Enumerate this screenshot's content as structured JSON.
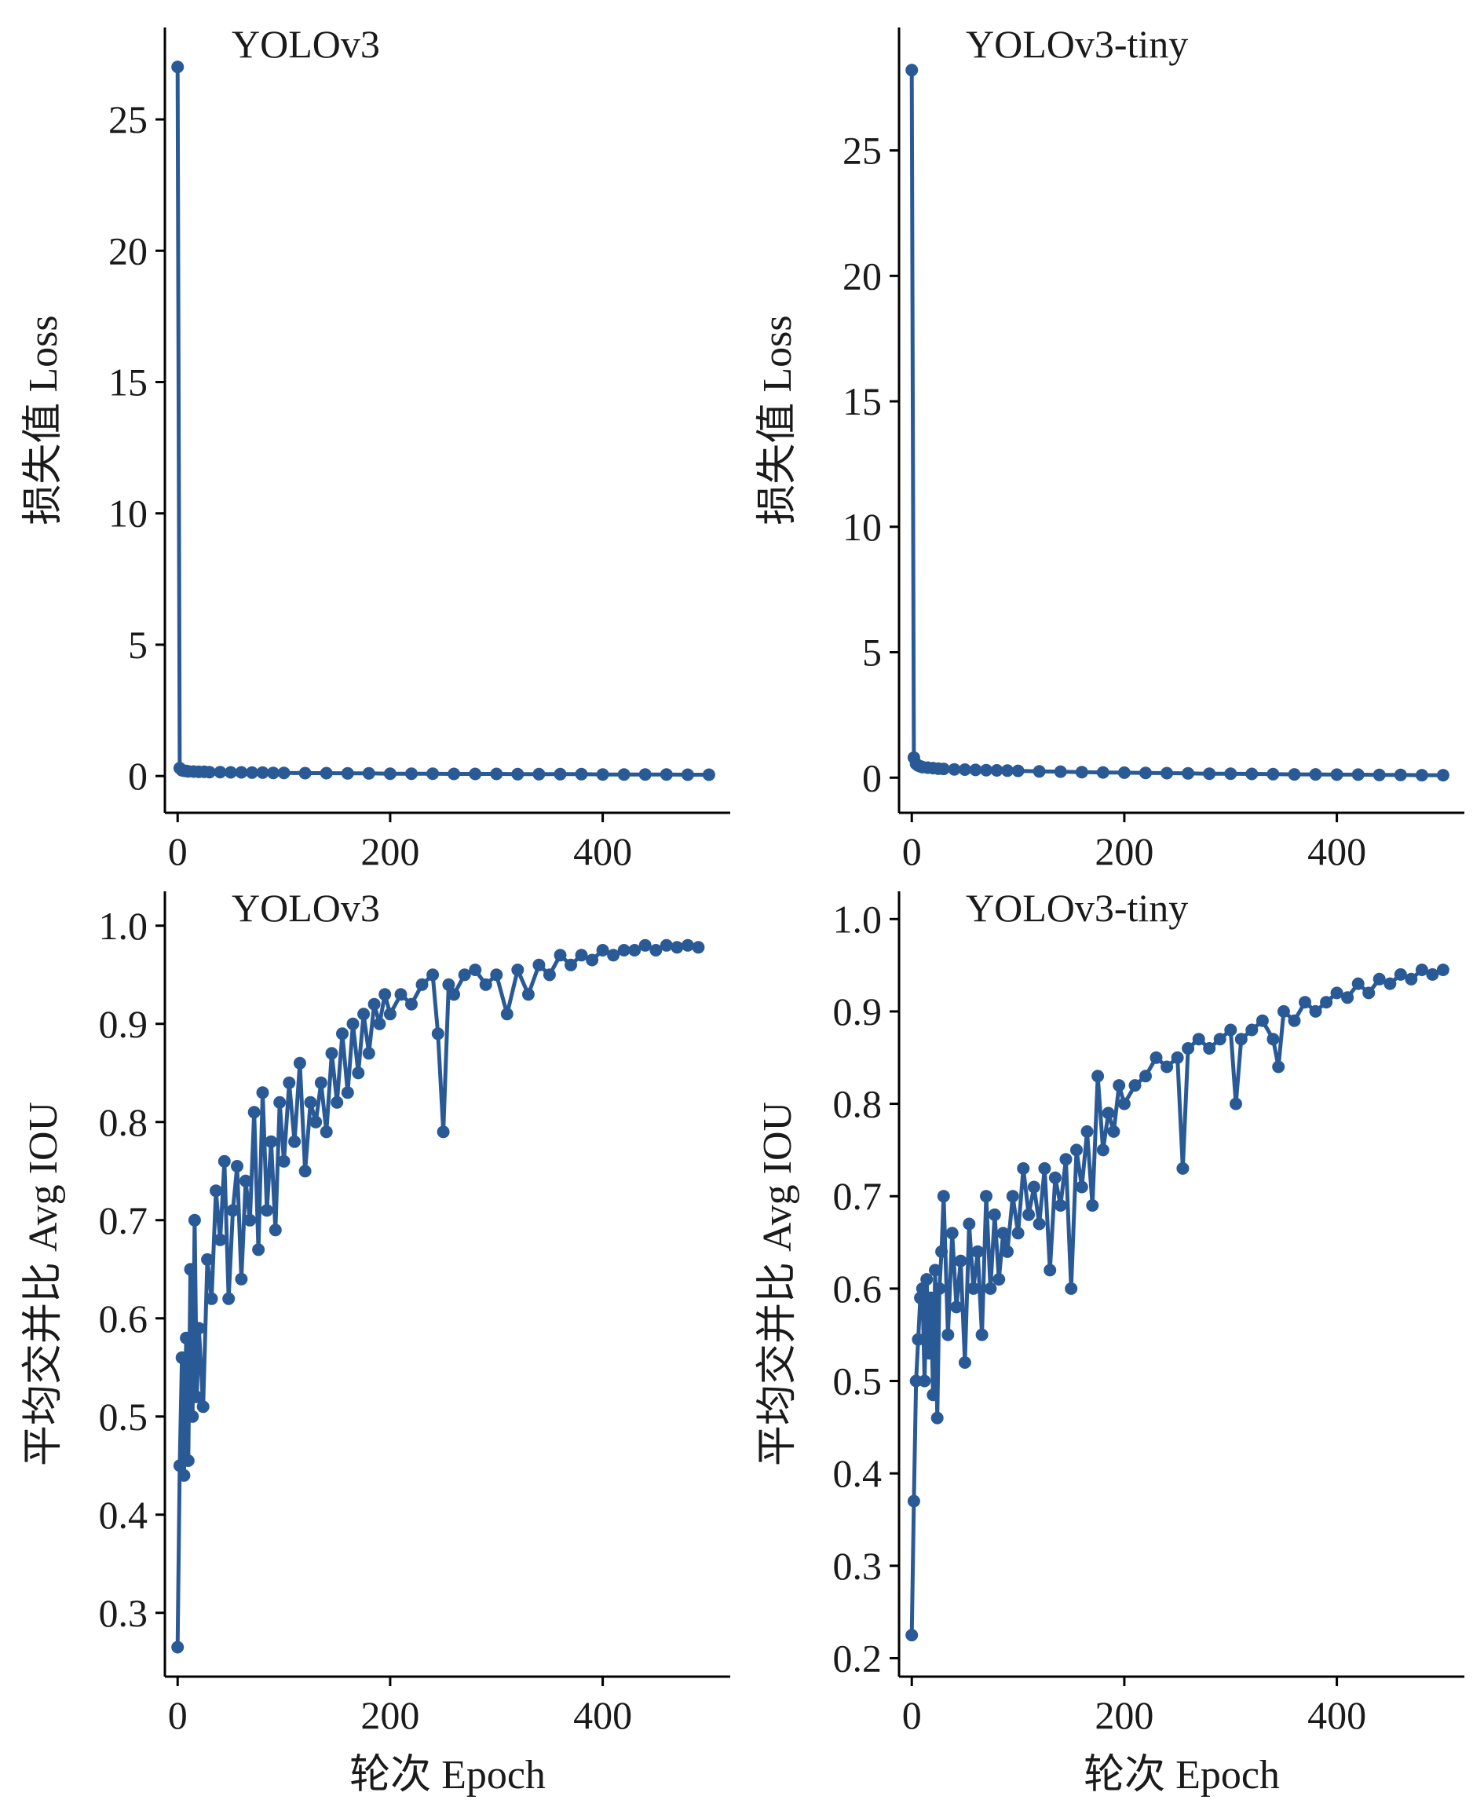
{
  "chart_data": [
    {
      "type": "line",
      "title": "YOLOv3",
      "xlabel": "",
      "ylabel": "损失值  Loss",
      "xlim": [
        -12,
        520
      ],
      "ylim": [
        -1.4,
        28.5
      ],
      "xticks": [
        0,
        200,
        400
      ],
      "xtick_labels": [
        "0",
        "200",
        "400"
      ],
      "yticks": [
        0,
        5,
        10,
        15,
        20,
        25
      ],
      "ytick_labels": [
        "0",
        "5",
        "10",
        "15",
        "20",
        "25"
      ],
      "grid": false,
      "color": "#2a5a96",
      "series": [
        {
          "x": [
            0,
            2,
            4,
            6,
            8,
            10,
            15,
            20,
            25,
            30,
            40,
            50,
            60,
            70,
            80,
            90,
            100,
            120,
            140,
            160,
            180,
            200,
            220,
            240,
            260,
            280,
            300,
            320,
            340,
            360,
            380,
            400,
            420,
            440,
            460,
            480,
            500
          ],
          "values": [
            27.0,
            0.3,
            0.22,
            0.2,
            0.19,
            0.18,
            0.17,
            0.16,
            0.16,
            0.15,
            0.15,
            0.14,
            0.14,
            0.13,
            0.13,
            0.12,
            0.12,
            0.11,
            0.11,
            0.1,
            0.1,
            0.09,
            0.09,
            0.09,
            0.08,
            0.08,
            0.08,
            0.07,
            0.07,
            0.07,
            0.07,
            0.06,
            0.06,
            0.06,
            0.06,
            0.05,
            0.05
          ]
        }
      ]
    },
    {
      "type": "line",
      "title": "YOLOv3-tiny",
      "xlabel": "",
      "ylabel": "损失值  Loss",
      "xlim": [
        -12,
        520
      ],
      "ylim": [
        -1.4,
        29.9
      ],
      "xticks": [
        0,
        200,
        400
      ],
      "xtick_labels": [
        "0",
        "200",
        "400"
      ],
      "yticks": [
        0,
        5,
        10,
        15,
        20,
        25
      ],
      "ytick_labels": [
        "0",
        "5",
        "10",
        "15",
        "20",
        "25"
      ],
      "grid": false,
      "color": "#2a5a96",
      "series": [
        {
          "x": [
            0,
            2,
            4,
            6,
            8,
            10,
            15,
            20,
            25,
            30,
            40,
            50,
            60,
            70,
            80,
            90,
            100,
            120,
            140,
            160,
            180,
            200,
            220,
            240,
            260,
            280,
            300,
            320,
            340,
            360,
            380,
            400,
            420,
            440,
            460,
            480,
            500
          ],
          "values": [
            28.2,
            0.8,
            0.55,
            0.48,
            0.45,
            0.42,
            0.4,
            0.38,
            0.36,
            0.35,
            0.33,
            0.32,
            0.31,
            0.3,
            0.29,
            0.28,
            0.27,
            0.25,
            0.24,
            0.22,
            0.21,
            0.2,
            0.19,
            0.18,
            0.17,
            0.16,
            0.16,
            0.15,
            0.14,
            0.13,
            0.13,
            0.12,
            0.12,
            0.11,
            0.11,
            0.1,
            0.1
          ]
        }
      ]
    },
    {
      "type": "line",
      "title": "YOLOv3",
      "xlabel": "轮次  Epoch",
      "ylabel": "平均交并比  Avg IOU",
      "xlim": [
        -12,
        520
      ],
      "ylim": [
        0.235,
        1.035
      ],
      "xticks": [
        0,
        200,
        400
      ],
      "xtick_labels": [
        "0",
        "200",
        "400"
      ],
      "yticks": [
        0.3,
        0.4,
        0.5,
        0.6,
        0.7,
        0.8,
        0.9,
        1.0
      ],
      "ytick_labels": [
        "0.3",
        "0.4",
        "0.5",
        "0.6",
        "0.7",
        "0.8",
        "0.9",
        "1.0"
      ],
      "grid": false,
      "color": "#2a5a96",
      "series": [
        {
          "x": [
            0,
            2,
            4,
            6,
            8,
            10,
            12,
            14,
            16,
            18,
            20,
            24,
            28,
            32,
            36,
            40,
            44,
            48,
            52,
            56,
            60,
            64,
            68,
            72,
            76,
            80,
            84,
            88,
            92,
            96,
            100,
            105,
            110,
            115,
            120,
            125,
            130,
            135,
            140,
            145,
            150,
            155,
            160,
            165,
            170,
            175,
            180,
            185,
            190,
            195,
            200,
            210,
            220,
            230,
            240,
            245,
            250,
            255,
            260,
            270,
            280,
            290,
            300,
            310,
            320,
            330,
            340,
            350,
            360,
            370,
            380,
            390,
            400,
            410,
            420,
            430,
            440,
            450,
            460,
            470,
            480,
            490
          ],
          "values": [
            0.265,
            0.45,
            0.56,
            0.44,
            0.58,
            0.455,
            0.65,
            0.5,
            0.7,
            0.52,
            0.59,
            0.51,
            0.66,
            0.62,
            0.73,
            0.68,
            0.76,
            0.62,
            0.71,
            0.755,
            0.64,
            0.74,
            0.7,
            0.81,
            0.67,
            0.83,
            0.71,
            0.78,
            0.69,
            0.82,
            0.76,
            0.84,
            0.78,
            0.86,
            0.75,
            0.82,
            0.8,
            0.84,
            0.79,
            0.87,
            0.82,
            0.89,
            0.83,
            0.9,
            0.85,
            0.91,
            0.87,
            0.92,
            0.9,
            0.93,
            0.91,
            0.93,
            0.92,
            0.94,
            0.95,
            0.89,
            0.79,
            0.94,
            0.93,
            0.95,
            0.955,
            0.94,
            0.95,
            0.91,
            0.955,
            0.93,
            0.96,
            0.95,
            0.97,
            0.96,
            0.97,
            0.965,
            0.975,
            0.97,
            0.975,
            0.975,
            0.98,
            0.975,
            0.98,
            0.978,
            0.98,
            0.978
          ]
        }
      ]
    },
    {
      "type": "line",
      "title": "YOLOv3-tiny",
      "xlabel": "轮次  Epoch",
      "ylabel": "平均交并比  Avg IOU",
      "xlim": [
        -12,
        520
      ],
      "ylim": [
        0.18,
        1.03
      ],
      "xticks": [
        0,
        200,
        400
      ],
      "xtick_labels": [
        "0",
        "200",
        "400"
      ],
      "yticks": [
        0.2,
        0.3,
        0.4,
        0.5,
        0.6,
        0.7,
        0.8,
        0.9,
        1.0
      ],
      "ytick_labels": [
        "0.2",
        "0.3",
        "0.4",
        "0.5",
        "0.6",
        "0.7",
        "0.8",
        "0.9",
        "1.0"
      ],
      "grid": false,
      "color": "#2a5a96",
      "series": [
        {
          "x": [
            0,
            2,
            4,
            6,
            8,
            10,
            12,
            14,
            16,
            18,
            20,
            22,
            24,
            26,
            28,
            30,
            34,
            38,
            42,
            46,
            50,
            54,
            58,
            62,
            66,
            70,
            74,
            78,
            82,
            86,
            90,
            95,
            100,
            105,
            110,
            115,
            120,
            125,
            130,
            135,
            140,
            145,
            150,
            155,
            160,
            165,
            170,
            175,
            180,
            185,
            190,
            195,
            200,
            210,
            220,
            230,
            240,
            250,
            255,
            260,
            270,
            280,
            290,
            300,
            305,
            310,
            320,
            330,
            340,
            345,
            350,
            360,
            370,
            380,
            390,
            400,
            410,
            420,
            430,
            440,
            450,
            460,
            470,
            480,
            490,
            500
          ],
          "values": [
            0.225,
            0.37,
            0.5,
            0.545,
            0.59,
            0.6,
            0.5,
            0.61,
            0.53,
            0.59,
            0.485,
            0.62,
            0.46,
            0.6,
            0.64,
            0.7,
            0.55,
            0.66,
            0.58,
            0.63,
            0.52,
            0.67,
            0.6,
            0.64,
            0.55,
            0.7,
            0.6,
            0.68,
            0.61,
            0.66,
            0.64,
            0.7,
            0.66,
            0.73,
            0.68,
            0.71,
            0.67,
            0.73,
            0.62,
            0.72,
            0.69,
            0.74,
            0.6,
            0.75,
            0.71,
            0.77,
            0.69,
            0.83,
            0.75,
            0.79,
            0.77,
            0.82,
            0.8,
            0.82,
            0.83,
            0.85,
            0.84,
            0.85,
            0.73,
            0.86,
            0.87,
            0.86,
            0.87,
            0.88,
            0.8,
            0.87,
            0.88,
            0.89,
            0.87,
            0.84,
            0.9,
            0.89,
            0.91,
            0.9,
            0.91,
            0.92,
            0.915,
            0.93,
            0.92,
            0.935,
            0.93,
            0.94,
            0.935,
            0.945,
            0.94,
            0.945
          ]
        }
      ]
    }
  ]
}
